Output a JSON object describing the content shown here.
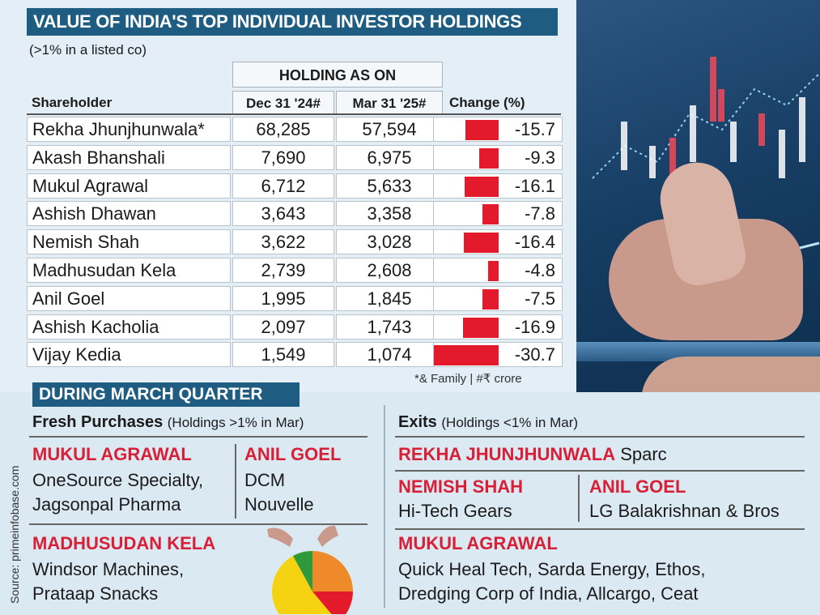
{
  "title": "VALUE OF INDIA'S TOP INDIVIDUAL INVESTOR HOLDINGS",
  "subtitle": "(>1% in a listed co)",
  "table": {
    "group_header": "HOLDING AS ON",
    "columns": [
      "Shareholder",
      "Dec 31 '24#",
      "Mar 31 '25#",
      "Change (%)"
    ],
    "footnote": "*& Family  |  #₹ crore"
  },
  "chart_data": {
    "type": "table",
    "title": "VALUE OF INDIA'S TOP INDIVIDUAL INVESTOR HOLDINGS",
    "subtitle": "(>1% in a listed co)",
    "bar_color": "#e3192c",
    "rows": [
      {
        "name": "Rekha Jhunjhunwala*",
        "dec24": "68,285",
        "mar25": "57,594",
        "change": "-15.7",
        "change_value": -15.7
      },
      {
        "name": "Akash Bhanshali",
        "dec24": "7,690",
        "mar25": "6,975",
        "change": "-9.3",
        "change_value": -9.3
      },
      {
        "name": "Mukul Agrawal",
        "dec24": "6,712",
        "mar25": "5,633",
        "change": "-16.1",
        "change_value": -16.1
      },
      {
        "name": "Ashish Dhawan",
        "dec24": "3,643",
        "mar25": "3,358",
        "change": "-7.8",
        "change_value": -7.8
      },
      {
        "name": "Nemish Shah",
        "dec24": "3,622",
        "mar25": "3,028",
        "change": "-16.4",
        "change_value": -16.4
      },
      {
        "name": "Madhusudan Kela",
        "dec24": "2,739",
        "mar25": "2,608",
        "change": "-4.8",
        "change_value": -4.8
      },
      {
        "name": "Anil Goel",
        "dec24": "1,995",
        "mar25": "1,845",
        "change": "-7.5",
        "change_value": -7.5
      },
      {
        "name": "Ashish Kacholia",
        "dec24": "2,097",
        "mar25": "1,743",
        "change": "-16.9",
        "change_value": -16.9
      },
      {
        "name": "Vijay Kedia",
        "dec24": "1,549",
        "mar25": "1,074",
        "change": "-30.7",
        "change_value": -30.7
      }
    ]
  },
  "quarter": {
    "heading": "DURING MARCH QUARTER",
    "source": "Source: primeinfobase.com",
    "fresh": {
      "title": "Fresh Purchases",
      "note": "(Holdings >1% in Mar)",
      "mukul_name": "MUKUL AGRAWAL",
      "mukul_line1": "OneSource Specialty,",
      "mukul_line2": "Jagsonpal Pharma",
      "anil_name": "ANIL GOEL",
      "anil_line1": "DCM",
      "anil_line2": "Nouvelle",
      "kela_name": "MADHUSUDAN KELA",
      "kela_line1": "Windsor Machines,",
      "kela_line2": "Prataap Snacks"
    },
    "exits": {
      "title": "Exits",
      "note": "(Holdings <1% in Mar)",
      "rekha_name": "REKHA JHUNJHUNWALA",
      "rekha_co": " Sparc",
      "nemish_name": "NEMISH SHAH",
      "nemish_co": "Hi-Tech Gears",
      "anil_name": "ANIL GOEL",
      "anil_co": "LG Balakrishnan & Bros",
      "mukul_name": "MUKUL AGRAWAL",
      "mukul_line1": "Quick Heal Tech, Sarda Energy, Ethos,",
      "mukul_line2": "Dredging Corp of India, Allcargo, Ceat"
    }
  },
  "colors": {
    "accent": "#1f5c81",
    "highlight": "#d81f36",
    "bar": "#e3192c"
  },
  "icons": [
    "stock-trading-photo",
    "pie-chart-icon"
  ]
}
